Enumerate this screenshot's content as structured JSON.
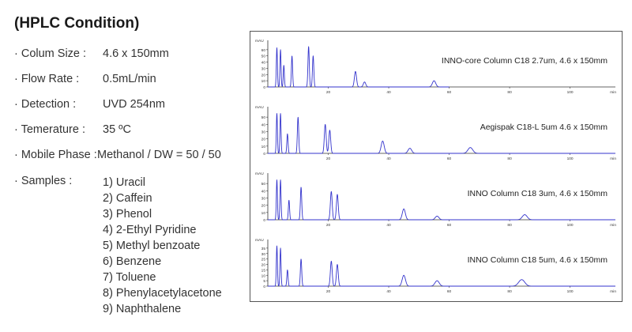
{
  "heading": "(HPLC Condition)",
  "conditions": [
    {
      "label": "· Colum Size :",
      "value": "4.6 x 150mm"
    },
    {
      "label": "· Flow Rate :",
      "value": "0.5mL/min"
    },
    {
      "label": "· Detection :",
      "value": "UVD 254nm"
    },
    {
      "label": "· Temerature :",
      "value": "35 ºC"
    },
    {
      "label": "· Mobile Phase :",
      "value": "Methanol / DW = 50 / 50"
    },
    {
      "label": "· Samples :",
      "value": ""
    }
  ],
  "samples": [
    "1) Uracil",
    "2) Caffein",
    "3) Phenol",
    "4) 2-Ethyl Pyridine",
    "5) Methyl benzoate",
    "6) Benzene",
    "7) Toluene",
    "8) Phenylacetylacetone",
    "9) Naphthalene"
  ],
  "colors": {
    "trace": "#3333cc",
    "axis": "#333333",
    "text": "#333333"
  },
  "chart_data": [
    {
      "type": "line",
      "title": "INNO-core Column C18 2.7um, 4.6 x 150mm",
      "ylabel": "mAU",
      "xlabel": "min",
      "xlim": [
        0,
        115
      ],
      "ylim": [
        0,
        70
      ],
      "xticks": [
        20,
        40,
        60,
        80,
        100
      ],
      "yticks": [
        0,
        10,
        20,
        30,
        40,
        50,
        60
      ],
      "trace_end": 60,
      "peaks": [
        {
          "rt": 3.0,
          "height": 63,
          "width": 0.18
        },
        {
          "rt": 4.2,
          "height": 60,
          "width": 0.18
        },
        {
          "rt": 5.3,
          "height": 35,
          "width": 0.18
        },
        {
          "rt": 8.0,
          "height": 50,
          "width": 0.2
        },
        {
          "rt": 13.5,
          "height": 65,
          "width": 0.22
        },
        {
          "rt": 15.0,
          "height": 50,
          "width": 0.22
        },
        {
          "rt": 29.0,
          "height": 25,
          "width": 0.35
        },
        {
          "rt": 32.0,
          "height": 8,
          "width": 0.4
        },
        {
          "rt": 55.0,
          "height": 10,
          "width": 0.55
        }
      ]
    },
    {
      "type": "line",
      "title": "Aegispak C18-L 5um 4.6 x 150mm",
      "ylabel": "mAU",
      "xlabel": "min",
      "xlim": [
        0,
        115
      ],
      "ylim": [
        0,
        60
      ],
      "xticks": [
        20,
        40,
        60,
        80,
        100
      ],
      "yticks": [
        0,
        10,
        20,
        30,
        40,
        50
      ],
      "trace_end": 115,
      "peaks": [
        {
          "rt": 3.0,
          "height": 55,
          "width": 0.18
        },
        {
          "rt": 4.2,
          "height": 55,
          "width": 0.18
        },
        {
          "rt": 6.5,
          "height": 27,
          "width": 0.2
        },
        {
          "rt": 10.0,
          "height": 50,
          "width": 0.22
        },
        {
          "rt": 19.0,
          "height": 40,
          "width": 0.3
        },
        {
          "rt": 20.5,
          "height": 32,
          "width": 0.3
        },
        {
          "rt": 38.0,
          "height": 17,
          "width": 0.5
        },
        {
          "rt": 47.0,
          "height": 7,
          "width": 0.6
        },
        {
          "rt": 67.0,
          "height": 8,
          "width": 0.8
        }
      ]
    },
    {
      "type": "line",
      "title": "INNO Column C18 3um, 4.6 x 150mm",
      "ylabel": "mAU",
      "xlabel": "min",
      "xlim": [
        0,
        115
      ],
      "ylim": [
        0,
        60
      ],
      "xticks": [
        20,
        40,
        60,
        80,
        100
      ],
      "yticks": [
        0,
        10,
        20,
        30,
        40,
        50
      ],
      "trace_end": 115,
      "peaks": [
        {
          "rt": 3.0,
          "height": 55,
          "width": 0.18
        },
        {
          "rt": 4.2,
          "height": 55,
          "width": 0.18
        },
        {
          "rt": 7.0,
          "height": 27,
          "width": 0.2
        },
        {
          "rt": 11.0,
          "height": 45,
          "width": 0.22
        },
        {
          "rt": 21.0,
          "height": 39,
          "width": 0.3
        },
        {
          "rt": 23.0,
          "height": 35,
          "width": 0.3
        },
        {
          "rt": 45.0,
          "height": 15,
          "width": 0.5
        },
        {
          "rt": 56.0,
          "height": 5,
          "width": 0.6
        },
        {
          "rt": 85.0,
          "height": 7,
          "width": 0.8
        }
      ]
    },
    {
      "type": "line",
      "title": "INNO Column C18 5um, 4.6 x 150mm",
      "ylabel": "mAU",
      "xlabel": "min",
      "xlim": [
        0,
        115
      ],
      "ylim": [
        0,
        40
      ],
      "xticks": [
        20,
        40,
        60,
        80,
        100
      ],
      "yticks": [
        0,
        5,
        10,
        15,
        20,
        25,
        30,
        35
      ],
      "trace_end": 115,
      "peaks": [
        {
          "rt": 3.0,
          "height": 37,
          "width": 0.18
        },
        {
          "rt": 4.2,
          "height": 35,
          "width": 0.18
        },
        {
          "rt": 6.5,
          "height": 15,
          "width": 0.2
        },
        {
          "rt": 11.0,
          "height": 25,
          "width": 0.22
        },
        {
          "rt": 21.0,
          "height": 23,
          "width": 0.3
        },
        {
          "rt": 23.0,
          "height": 20,
          "width": 0.3
        },
        {
          "rt": 45.0,
          "height": 10,
          "width": 0.55
        },
        {
          "rt": 56.0,
          "height": 5,
          "width": 0.7
        },
        {
          "rt": 84.0,
          "height": 6,
          "width": 1.0
        }
      ]
    }
  ]
}
